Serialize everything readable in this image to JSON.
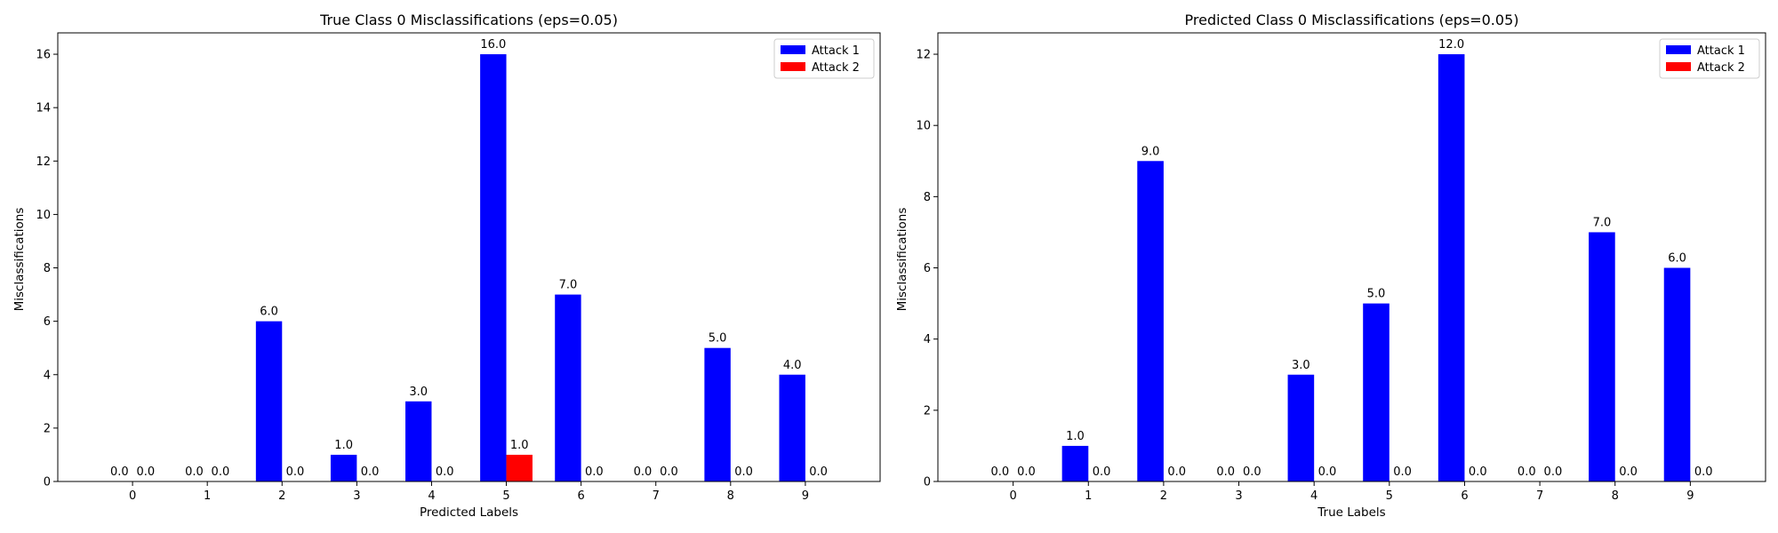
{
  "chart_data": [
    {
      "type": "bar",
      "title": "True Class 0 Misclassifications (eps=0.05)",
      "xlabel": "Predicted Labels",
      "ylabel": "Misclassifications",
      "categories": [
        "0",
        "1",
        "2",
        "3",
        "4",
        "5",
        "6",
        "7",
        "8",
        "9"
      ],
      "series": [
        {
          "name": "Attack 1",
          "color": "#0000ff",
          "values": [
            0,
            0,
            6,
            1,
            3,
            16,
            7,
            0,
            5,
            4
          ]
        },
        {
          "name": "Attack 2",
          "color": "#ff0000",
          "values": [
            0,
            0,
            0,
            0,
            0,
            1,
            0,
            0,
            0,
            0
          ]
        }
      ],
      "data_labels": [
        [
          "0.0",
          "0.0",
          "6.0",
          "1.0",
          "3.0",
          "16.0",
          "7.0",
          "0.0",
          "5.0",
          "4.0"
        ],
        [
          "0.0",
          "0.0",
          "0.0",
          "0.0",
          "0.0",
          "1.0",
          "0.0",
          "0.0",
          "0.0",
          "0.0"
        ]
      ],
      "yticks": [
        "0",
        "2",
        "4",
        "6",
        "8",
        "10",
        "12",
        "14",
        "16"
      ],
      "ylim": [
        0,
        16.8
      ],
      "xlim": [
        -1,
        10
      ],
      "grid": false,
      "legend": "top-right"
    },
    {
      "type": "bar",
      "title": "Predicted Class 0 Misclassifications (eps=0.05)",
      "xlabel": "True Labels",
      "ylabel": "Misclassifications",
      "categories": [
        "0",
        "1",
        "2",
        "3",
        "4",
        "5",
        "6",
        "7",
        "8",
        "9"
      ],
      "series": [
        {
          "name": "Attack 1",
          "color": "#0000ff",
          "values": [
            0,
            1,
            9,
            0,
            3,
            5,
            12,
            0,
            7,
            6
          ]
        },
        {
          "name": "Attack 2",
          "color": "#ff0000",
          "values": [
            0,
            0,
            0,
            0,
            0,
            0,
            0,
            0,
            0,
            0
          ]
        }
      ],
      "data_labels": [
        [
          "0.0",
          "1.0",
          "9.0",
          "0.0",
          "3.0",
          "5.0",
          "12.0",
          "0.0",
          "7.0",
          "6.0"
        ],
        [
          "0.0",
          "0.0",
          "0.0",
          "0.0",
          "0.0",
          "0.0",
          "0.0",
          "0.0",
          "0.0",
          "0.0"
        ]
      ],
      "yticks": [
        "0",
        "2",
        "4",
        "6",
        "8",
        "10",
        "12"
      ],
      "ylim": [
        0,
        12.6
      ],
      "xlim": [
        -1,
        10
      ],
      "grid": false,
      "legend": "top-right"
    }
  ]
}
